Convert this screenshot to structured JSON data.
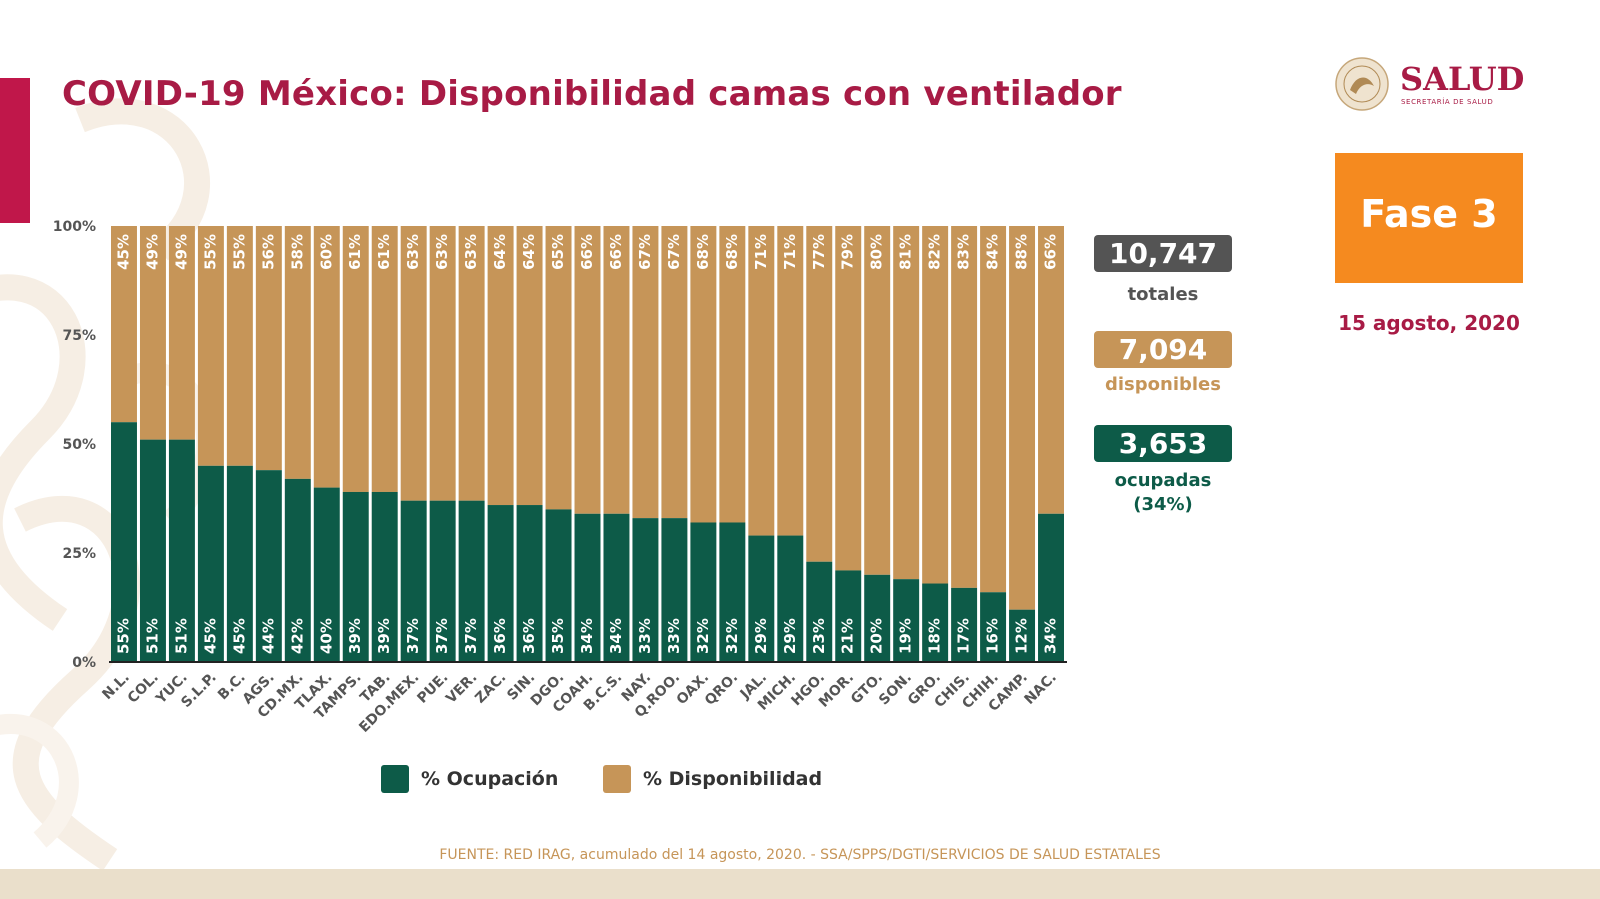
{
  "title": "COVID-19 México: Disponibilidad camas con ventilador",
  "logo": {
    "word": "SALUD",
    "sub": "SECRETARÍA DE SALUD"
  },
  "phase": "Fase 3",
  "date": "15 agosto, 2020",
  "stats": {
    "total_value": "10,747",
    "total_label": "totales",
    "available_value": "7,094",
    "available_label": "disponibles",
    "occupied_value": "3,653",
    "occupied_label": "ocupadas",
    "occupied_pct": "(34%)"
  },
  "legend": {
    "occupied": "% Ocupación",
    "available": "% Disponibilidad"
  },
  "source": "FUENTE: RED IRAG, acumulado del 14 agosto, 2020. -  SSA/SPPS/DGTI/SERVICIOS DE SALUD ESTATALES",
  "colors": {
    "occupied": "#0d5b48",
    "available": "#c69558",
    "title": "#a81b45",
    "phase": "#f58a1f",
    "total_box": "#545454"
  },
  "chart_data": {
    "type": "bar",
    "stacked": true,
    "percent": true,
    "ylim": [
      0,
      100
    ],
    "y_ticks": [
      "0%",
      "25%",
      "50%",
      "75%",
      "100%"
    ],
    "categories": [
      "N.L.",
      "COL.",
      "YUC.",
      "S.L.P.",
      "B.C.",
      "AGS.",
      "CD.MX.",
      "TLAX.",
      "TAMPS.",
      "TAB.",
      "EDO.MEX.",
      "PUE.",
      "VER.",
      "ZAC.",
      "SIN.",
      "DGO.",
      "COAH.",
      "B.C.S.",
      "NAY.",
      "Q.ROO.",
      "OAX.",
      "QRO.",
      "JAL.",
      "MICH.",
      "HGO.",
      "MOR.",
      "GTO.",
      "SON.",
      "GRO.",
      "CHIS.",
      "CHIH.",
      "CAMP.",
      "NAC."
    ],
    "series": [
      {
        "name": "% Ocupación",
        "values": [
          55,
          51,
          51,
          45,
          45,
          44,
          42,
          40,
          39,
          39,
          37,
          37,
          37,
          36,
          36,
          35,
          34,
          34,
          33,
          33,
          32,
          32,
          29,
          29,
          23,
          21,
          20,
          19,
          18,
          17,
          16,
          12,
          34
        ]
      },
      {
        "name": "% Disponibilidad",
        "values": [
          45,
          49,
          49,
          55,
          55,
          56,
          58,
          60,
          61,
          61,
          63,
          63,
          63,
          64,
          64,
          65,
          66,
          66,
          67,
          67,
          68,
          68,
          71,
          71,
          77,
          79,
          80,
          81,
          82,
          83,
          84,
          88,
          66
        ]
      }
    ]
  }
}
